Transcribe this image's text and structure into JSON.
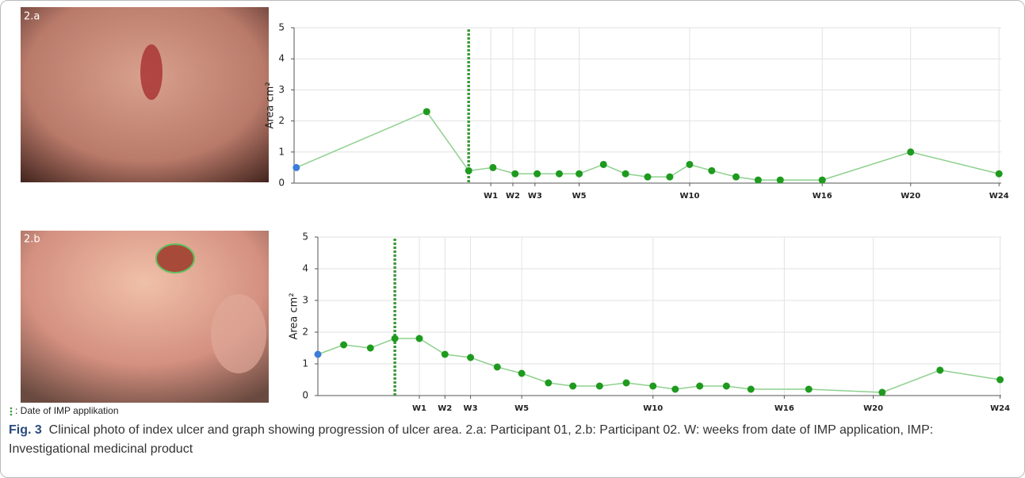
{
  "panels": [
    {
      "label": "2.a"
    },
    {
      "label": "2.b"
    }
  ],
  "note": ": Date of IMP applikation",
  "caption": {
    "label": "Fig. 3",
    "text": "Clinical photo of index ulcer and graph showing progression of ulcer area. 2.a: Participant 01, 2.b: Participant 02. W: weeks from date of IMP application, IMP: Investigational medicinal product"
  },
  "chart_data": [
    {
      "type": "line",
      "y_label": "Area cm²",
      "xlim": [
        -7.9,
        24.1
      ],
      "ylim": [
        0,
        5
      ],
      "yticks": [
        0,
        1,
        2,
        3,
        4,
        5
      ],
      "xticks": [
        {
          "value": 1,
          "label": "W1"
        },
        {
          "value": 2,
          "label": "W2"
        },
        {
          "value": 3,
          "label": "W3"
        },
        {
          "value": 5,
          "label": "W5"
        },
        {
          "value": 10,
          "label": "W10"
        },
        {
          "value": 16,
          "label": "W16"
        },
        {
          "value": 20,
          "label": "W20"
        },
        {
          "value": 24,
          "label": "W24"
        }
      ],
      "grid": true,
      "imp_date_x": 0,
      "imp_date_color": "#3a9a3a",
      "series": [
        {
          "color": "#8fd08f",
          "marker_color": "#1e9a1e",
          "baseline_marker_color": "#3b7dd8",
          "x": [
            -7.8,
            -1.9,
            0.0,
            1.1,
            2.1,
            3.1,
            4.1,
            5.0,
            6.1,
            7.1,
            8.1,
            9.1,
            10.0,
            11.0,
            12.1,
            13.1,
            14.1,
            16.0,
            20.0,
            24.0
          ],
          "values": [
            0.5,
            2.3,
            0.4,
            0.5,
            0.3,
            0.3,
            0.3,
            0.3,
            0.6,
            0.3,
            0.2,
            0.2,
            0.6,
            0.4,
            0.2,
            0.1,
            0.1,
            0.1,
            1.0,
            0.3
          ]
        }
      ]
    },
    {
      "type": "line",
      "y_label": "Area cm²",
      "xlim": [
        -3.46,
        27.25
      ],
      "ylim": [
        0,
        5
      ],
      "yticks": [
        0,
        1,
        2,
        3,
        4,
        5
      ],
      "xticks": [
        {
          "value": 1.1,
          "label": "W1"
        },
        {
          "value": 2.25,
          "label": "W2"
        },
        {
          "value": 3.4,
          "label": "W3"
        },
        {
          "value": 5.7,
          "label": "W5"
        },
        {
          "value": 11.6,
          "label": "W10"
        },
        {
          "value": 17.5,
          "label": "W16"
        },
        {
          "value": 21.5,
          "label": "W20"
        },
        {
          "value": 27.2,
          "label": "W24"
        }
      ],
      "grid": true,
      "imp_date_x": 0,
      "imp_date_color": "#3a9a3a",
      "series": [
        {
          "color": "#8fd08f",
          "marker_color": "#1e9a1e",
          "baseline_marker_color": "#3b7dd8",
          "x": [
            -3.46,
            -2.3,
            -1.1,
            0.0,
            1.1,
            2.25,
            3.4,
            4.6,
            5.7,
            6.9,
            8.0,
            9.2,
            10.4,
            11.6,
            12.6,
            13.7,
            14.9,
            16.0,
            18.6,
            21.9,
            24.5,
            27.2
          ],
          "values": [
            1.3,
            1.6,
            1.5,
            1.8,
            1.8,
            1.3,
            1.2,
            0.9,
            0.7,
            0.4,
            0.3,
            0.3,
            0.4,
            0.3,
            0.2,
            0.3,
            0.3,
            0.2,
            0.2,
            0.1,
            0.8,
            0.5
          ]
        }
      ]
    }
  ]
}
